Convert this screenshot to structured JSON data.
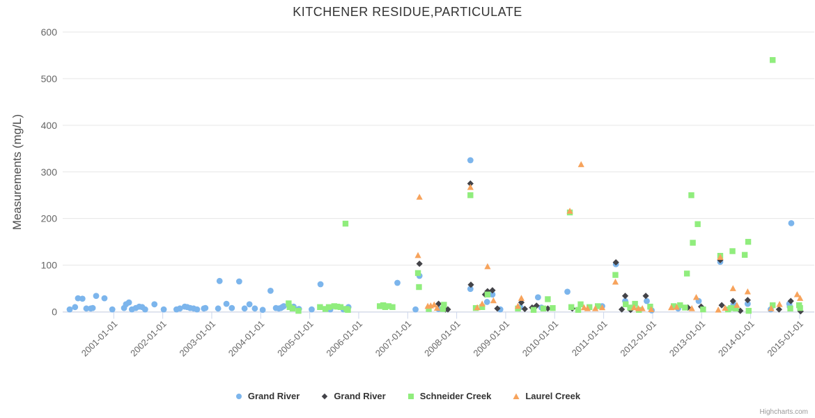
{
  "chart": {
    "title": "KITCHENER RESIDUE,PARTICULATE",
    "credit": "Highcharts.com"
  },
  "chart_data": {
    "type": "scatter",
    "title": "KITCHENER RESIDUE,PARTICULATE",
    "xlabel": "",
    "ylabel": "Measurements (mg/L)",
    "ylim": [
      0,
      600
    ],
    "yticks": [
      0,
      100,
      200,
      300,
      400,
      500,
      600
    ],
    "xlim_years": [
      2000.0,
      2015.3
    ],
    "xticks": [
      {
        "year": 2001,
        "label": "2001-01-01"
      },
      {
        "year": 2002,
        "label": "2002-01-01"
      },
      {
        "year": 2003,
        "label": "2003-01-01"
      },
      {
        "year": 2004,
        "label": "2004-01-01"
      },
      {
        "year": 2005,
        "label": "2005-01-01"
      },
      {
        "year": 2006,
        "label": "2006-01-01"
      },
      {
        "year": 2007,
        "label": "2007-01-01"
      },
      {
        "year": 2008,
        "label": "2008-01-01"
      },
      {
        "year": 2009,
        "label": "2009-01-01"
      },
      {
        "year": 2010,
        "label": "2010-01-01"
      },
      {
        "year": 2011,
        "label": "2011-01-01"
      },
      {
        "year": 2012,
        "label": "2012-01-01"
      },
      {
        "year": 2013,
        "label": "2013-01-01"
      },
      {
        "year": 2014,
        "label": "2014-01-01"
      },
      {
        "year": 2015,
        "label": "2015-01-01"
      }
    ],
    "grid": "horizontal",
    "legend_position": "bottom",
    "colors": {
      "grid": "#e6e6e6",
      "axis_line": "#ccd6eb",
      "tick_label": "#666666",
      "title": "#333333"
    },
    "series": [
      {
        "name": "Grand River",
        "marker": "circle",
        "color": "#7cb5ec",
        "points": [
          [
            2000.1,
            5
          ],
          [
            2000.21,
            10
          ],
          [
            2000.27,
            29
          ],
          [
            2000.36,
            28
          ],
          [
            2000.44,
            7
          ],
          [
            2000.53,
            7
          ],
          [
            2000.57,
            8
          ],
          [
            2000.64,
            34
          ],
          [
            2000.81,
            29
          ],
          [
            2000.97,
            5
          ],
          [
            2001.21,
            8
          ],
          [
            2001.25,
            16
          ],
          [
            2001.31,
            20
          ],
          [
            2001.37,
            5
          ],
          [
            2001.45,
            8
          ],
          [
            2001.52,
            11
          ],
          [
            2001.58,
            10
          ],
          [
            2001.64,
            5
          ],
          [
            2001.83,
            16
          ],
          [
            2002.02,
            5
          ],
          [
            2002.28,
            5
          ],
          [
            2002.35,
            7
          ],
          [
            2002.45,
            11
          ],
          [
            2002.5,
            10
          ],
          [
            2002.56,
            8
          ],
          [
            2002.63,
            7
          ],
          [
            2002.7,
            5
          ],
          [
            2002.84,
            7
          ],
          [
            2002.87,
            8
          ],
          [
            2003.13,
            7
          ],
          [
            2003.16,
            66
          ],
          [
            2003.3,
            17
          ],
          [
            2003.41,
            8
          ],
          [
            2003.56,
            65
          ],
          [
            2003.67,
            7
          ],
          [
            2003.77,
            16
          ],
          [
            2003.88,
            7
          ],
          [
            2004.04,
            4
          ],
          [
            2004.2,
            45
          ],
          [
            2004.31,
            8
          ],
          [
            2004.37,
            7
          ],
          [
            2004.41,
            8
          ],
          [
            2004.44,
            10
          ],
          [
            2004.47,
            12
          ],
          [
            2004.67,
            11
          ],
          [
            2004.78,
            6
          ],
          [
            2005.04,
            5
          ],
          [
            2005.22,
            59
          ],
          [
            2005.42,
            5
          ],
          [
            2005.69,
            5
          ],
          [
            2005.79,
            10
          ],
          [
            2006.79,
            62
          ],
          [
            2007.16,
            5
          ],
          [
            2007.24,
            77
          ],
          [
            2007.63,
            6
          ],
          [
            2008.28,
            325
          ],
          [
            2008.28,
            49
          ],
          [
            2008.62,
            21
          ],
          [
            2008.73,
            37
          ],
          [
            2008.89,
            5
          ],
          [
            2009.3,
            10
          ],
          [
            2009.66,
            31
          ],
          [
            2009.73,
            9
          ],
          [
            2010.26,
            43
          ],
          [
            2010.97,
            12
          ],
          [
            2011.25,
            102
          ],
          [
            2011.44,
            23
          ],
          [
            2011.88,
            23
          ],
          [
            2011.98,
            3
          ],
          [
            2012.52,
            7
          ],
          [
            2012.94,
            23
          ],
          [
            2013.38,
            107
          ],
          [
            2013.65,
            16
          ],
          [
            2013.94,
            17
          ],
          [
            2014.41,
            5
          ],
          [
            2014.79,
            17
          ],
          [
            2014.8,
            11
          ],
          [
            2014.83,
            190
          ]
        ]
      },
      {
        "name": "Grand River",
        "marker": "diamond",
        "color": "#434348",
        "points": [
          [
            2007.24,
            103
          ],
          [
            2007.63,
            17
          ],
          [
            2007.77,
            5
          ],
          [
            2007.82,
            5
          ],
          [
            2008.28,
            275
          ],
          [
            2008.29,
            58
          ],
          [
            2008.58,
            37
          ],
          [
            2008.63,
            44
          ],
          [
            2008.73,
            46
          ],
          [
            2008.83,
            7
          ],
          [
            2009.32,
            20
          ],
          [
            2009.39,
            6
          ],
          [
            2009.54,
            9
          ],
          [
            2009.63,
            13
          ],
          [
            2009.86,
            7
          ],
          [
            2010.36,
            7
          ],
          [
            2011.25,
            106
          ],
          [
            2011.37,
            5
          ],
          [
            2011.44,
            34
          ],
          [
            2011.55,
            4
          ],
          [
            2011.86,
            34
          ],
          [
            2012.72,
            9
          ],
          [
            2012.99,
            11
          ],
          [
            2013.38,
            111
          ],
          [
            2013.41,
            14
          ],
          [
            2013.64,
            23
          ],
          [
            2013.79,
            2
          ],
          [
            2013.94,
            25
          ],
          [
            2014.58,
            5
          ],
          [
            2014.82,
            23
          ],
          [
            2015.02,
            1
          ]
        ]
      },
      {
        "name": "Schneider Creek",
        "marker": "square",
        "color": "#90ed7d",
        "points": [
          [
            2004.57,
            18
          ],
          [
            2004.59,
            10
          ],
          [
            2004.65,
            7
          ],
          [
            2004.77,
            2
          ],
          [
            2005.21,
            10
          ],
          [
            2005.32,
            6
          ],
          [
            2005.39,
            10
          ],
          [
            2005.5,
            12
          ],
          [
            2005.56,
            11
          ],
          [
            2005.63,
            10
          ],
          [
            2005.73,
            189
          ],
          [
            2005.75,
            6
          ],
          [
            2005.78,
            4
          ],
          [
            2006.43,
            12
          ],
          [
            2006.5,
            14
          ],
          [
            2006.54,
            10
          ],
          [
            2006.61,
            12
          ],
          [
            2006.69,
            10
          ],
          [
            2007.21,
            83
          ],
          [
            2007.23,
            53
          ],
          [
            2007.43,
            6
          ],
          [
            2007.72,
            6
          ],
          [
            2007.74,
            15
          ],
          [
            2008.28,
            250
          ],
          [
            2008.39,
            8
          ],
          [
            2008.52,
            10
          ],
          [
            2008.63,
            37
          ],
          [
            2009.25,
            7
          ],
          [
            2009.57,
            4
          ],
          [
            2009.77,
            7
          ],
          [
            2009.86,
            27
          ],
          [
            2009.96,
            8
          ],
          [
            2010.31,
            213
          ],
          [
            2010.34,
            10
          ],
          [
            2010.48,
            4
          ],
          [
            2010.53,
            16
          ],
          [
            2010.71,
            10
          ],
          [
            2010.88,
            12
          ],
          [
            2011.24,
            79
          ],
          [
            2011.45,
            16
          ],
          [
            2011.54,
            9
          ],
          [
            2011.64,
            17
          ],
          [
            2011.72,
            4
          ],
          [
            2011.95,
            11
          ],
          [
            2012.43,
            12
          ],
          [
            2012.56,
            14
          ],
          [
            2012.66,
            9
          ],
          [
            2012.7,
            82
          ],
          [
            2012.79,
            250
          ],
          [
            2012.82,
            148
          ],
          [
            2012.92,
            188
          ],
          [
            2013.03,
            5
          ],
          [
            2013.38,
            120
          ],
          [
            2013.54,
            5
          ],
          [
            2013.6,
            8
          ],
          [
            2013.63,
            130
          ],
          [
            2013.7,
            7
          ],
          [
            2013.88,
            122
          ],
          [
            2013.95,
            150
          ],
          [
            2013.96,
            2
          ],
          [
            2014.45,
            540
          ],
          [
            2014.45,
            14
          ],
          [
            2014.81,
            7
          ],
          [
            2014.99,
            14
          ],
          [
            2015.01,
            8
          ]
        ]
      },
      {
        "name": "Laurel Creek",
        "marker": "triangle",
        "color": "#f7a35c",
        "points": [
          [
            2007.21,
            121
          ],
          [
            2007.24,
            246
          ],
          [
            2007.41,
            12
          ],
          [
            2007.47,
            13
          ],
          [
            2007.54,
            15
          ],
          [
            2007.6,
            8
          ],
          [
            2008.28,
            267
          ],
          [
            2008.42,
            9
          ],
          [
            2008.52,
            17
          ],
          [
            2008.63,
            97
          ],
          [
            2008.75,
            24
          ],
          [
            2009.25,
            12
          ],
          [
            2009.32,
            29
          ],
          [
            2010.31,
            216
          ],
          [
            2010.54,
            316
          ],
          [
            2010.6,
            9
          ],
          [
            2010.67,
            7
          ],
          [
            2010.83,
            7
          ],
          [
            2010.97,
            9
          ],
          [
            2011.24,
            64
          ],
          [
            2011.62,
            9
          ],
          [
            2011.71,
            7
          ],
          [
            2011.79,
            7
          ],
          [
            2011.97,
            5
          ],
          [
            2012.38,
            9
          ],
          [
            2012.49,
            10
          ],
          [
            2012.8,
            7
          ],
          [
            2012.89,
            31
          ],
          [
            2013.34,
            4
          ],
          [
            2013.38,
            117
          ],
          [
            2013.48,
            8
          ],
          [
            2013.64,
            50
          ],
          [
            2013.72,
            14
          ],
          [
            2013.94,
            43
          ],
          [
            2014.42,
            7
          ],
          [
            2014.59,
            16
          ],
          [
            2014.95,
            37
          ],
          [
            2015.01,
            29
          ]
        ]
      }
    ]
  }
}
